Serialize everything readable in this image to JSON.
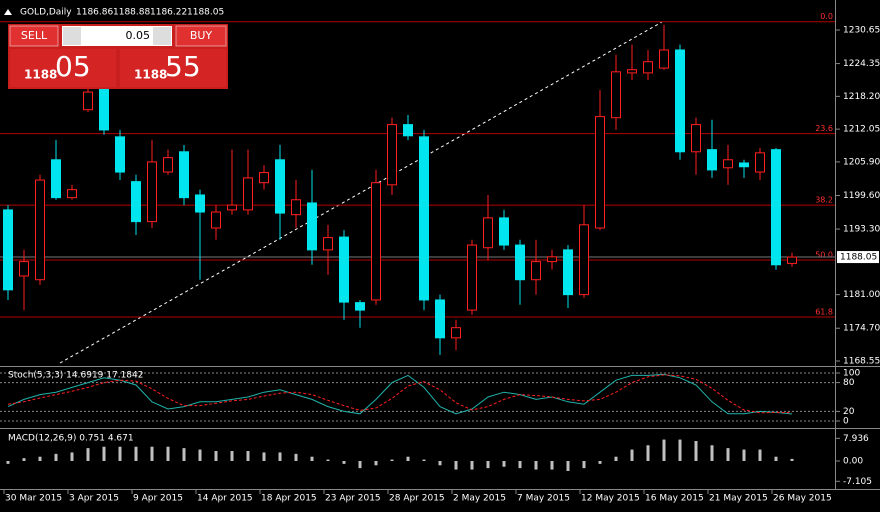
{
  "header": {
    "symbol": "GOLD,Daily",
    "ohlc": [
      1186.86,
      1188.88,
      1186.22,
      1188.05
    ]
  },
  "trade_panel": {
    "sell": "SELL",
    "lot": "0.05",
    "buy": "BUY",
    "bid_big": "1188",
    "bid_small": "05",
    "ask_big": "1188",
    "ask_small": "55"
  },
  "chart_data": [
    {
      "type": "candlestick",
      "categories": [
        "30 Mar 2015",
        null,
        null,
        null,
        "3 Apr 2015",
        null,
        null,
        null,
        "9 Apr 2015",
        null,
        null,
        null,
        "14 Apr 2015",
        null,
        null,
        null,
        "18 Apr 2015",
        null,
        null,
        null,
        "23 Apr 2015",
        null,
        null,
        null,
        "28 Apr 2015",
        null,
        null,
        null,
        "2 May 2015",
        null,
        null,
        null,
        "7 May 2015",
        null,
        null,
        null,
        "12 May 2015",
        null,
        null,
        null,
        "16 May 2015",
        null,
        null,
        null,
        "21 May 2015",
        null,
        null,
        null,
        "26 May 2015",
        null
      ],
      "open": [
        1196.9,
        1184.5,
        1183.8,
        1206.3,
        1199.2,
        1215.7,
        1220.4,
        1210.6,
        1202.2,
        1194.7,
        1204.0,
        1207.8,
        1199.7,
        1193.5,
        1196.9,
        1196.9,
        1202.0,
        1206.3,
        1196.0,
        1198.2,
        1189.4,
        1191.8,
        1179.5,
        1180.0,
        1201.6,
        1212.9,
        1210.6,
        1180.0,
        1172.9,
        1178.1,
        1189.8,
        1195.4,
        1190.3,
        1183.8,
        1187.2,
        1189.4,
        1181.0,
        1193.5,
        1214.2,
        1222.6,
        1222.6,
        1223.5,
        1226.9,
        1207.8,
        1208.2,
        1204.8,
        1205.7,
        1204.0,
        1208.2,
        1186.86
      ],
      "high": [
        1197.8,
        1189.4,
        1203.5,
        1210.0,
        1201.6,
        1220.4,
        1221.3,
        1211.9,
        1203.5,
        1210.0,
        1208.2,
        1209.1,
        1200.7,
        1197.8,
        1208.2,
        1208.2,
        1205.3,
        1209.1,
        1202.5,
        1204.4,
        1194.1,
        1193.1,
        1180.0,
        1204.4,
        1214.2,
        1214.7,
        1211.9,
        1181.0,
        1176.3,
        1191.3,
        1199.7,
        1196.9,
        1191.3,
        1191.3,
        1189.4,
        1190.3,
        1197.8,
        1219.4,
        1226.0,
        1227.9,
        1226.9,
        1231.6,
        1227.9,
        1214.2,
        1213.8,
        1209.1,
        1206.3,
        1208.5,
        1208.5,
        1188.88
      ],
      "low": [
        1180.0,
        1178.1,
        1182.8,
        1198.8,
        1198.8,
        1215.3,
        1211.0,
        1202.5,
        1192.2,
        1193.5,
        1203.5,
        1197.8,
        1183.8,
        1191.3,
        1196.0,
        1196.0,
        1200.7,
        1191.3,
        1193.5,
        1186.6,
        1184.7,
        1176.3,
        1174.8,
        1179.1,
        1199.7,
        1210.0,
        1178.1,
        1169.7,
        1170.6,
        1177.2,
        1187.5,
        1189.4,
        1179.1,
        1181.0,
        1185.7,
        1178.5,
        1180.4,
        1193.1,
        1211.9,
        1221.3,
        1221.3,
        1223.2,
        1206.3,
        1203.5,
        1202.9,
        1201.6,
        1202.9,
        1202.5,
        1185.7,
        1186.22
      ],
      "close": [
        1181.9,
        1187.2,
        1202.5,
        1199.2,
        1200.7,
        1219.0,
        1211.9,
        1204.0,
        1194.7,
        1205.9,
        1206.7,
        1199.2,
        1196.5,
        1196.5,
        1197.8,
        1202.9,
        1203.9,
        1196.3,
        1198.8,
        1189.4,
        1191.7,
        1179.6,
        1178.1,
        1202.0,
        1212.9,
        1210.8,
        1180.0,
        1172.9,
        1174.8,
        1190.3,
        1195.4,
        1190.3,
        1183.8,
        1187.2,
        1188.1,
        1181.0,
        1194.1,
        1214.4,
        1222.8,
        1223.2,
        1224.7,
        1226.9,
        1207.8,
        1212.9,
        1204.4,
        1206.3,
        1205.0,
        1207.6,
        1186.6,
        1188.05
      ],
      "up_color": "#ff2020",
      "down_color": "#00e5ee",
      "ylim": [
        1167.8,
        1232.9
      ],
      "yticks": [
        1230.65,
        1224.35,
        {
          "value": 1218.2,
          "label": "1218.20"
        },
        1212.05,
        {
          "value": 1205.9,
          "label": "1205.90"
        },
        {
          "value": 1199.6,
          "label": "1199.60"
        },
        {
          "value": 1193.3,
          "label": "1193.30"
        },
        {
          "value": 1181.0,
          "label": "1181.00"
        },
        {
          "value": 1174.7,
          "label": "1174.70"
        },
        1168.55
      ],
      "last_price": 1188.05,
      "fibonacci": [
        {
          "label": "0.0",
          "price": 1232.2
        },
        {
          "label": "23.6",
          "price": 1211.2
        },
        {
          "label": "38.2",
          "price": 1197.8
        },
        {
          "label": "50.0",
          "price": 1187.5
        },
        {
          "label": "61.8",
          "price": 1176.8
        }
      ]
    },
    {
      "type": "line",
      "title": "Stoch(5,3,3) 14.6919 17.1842",
      "series": [
        {
          "name": "main",
          "color": "#20b2aa",
          "values": [
            30,
            45,
            55,
            60,
            70,
            80,
            90,
            85,
            75,
            40,
            25,
            30,
            40,
            40,
            45,
            50,
            60,
            65,
            55,
            45,
            30,
            20,
            15,
            45,
            80,
            95,
            70,
            30,
            15,
            25,
            50,
            60,
            55,
            45,
            50,
            40,
            35,
            60,
            85,
            95,
            95,
            97,
            90,
            75,
            40,
            15,
            15,
            20,
            18,
            14.6919
          ]
        },
        {
          "name": "signal",
          "color": "#ff2020",
          "values": [
            35,
            40,
            48,
            55,
            62,
            70,
            80,
            85,
            83,
            67,
            47,
            32,
            32,
            37,
            42,
            45,
            52,
            58,
            60,
            55,
            43,
            32,
            22,
            27,
            47,
            73,
            82,
            65,
            38,
            23,
            30,
            45,
            55,
            53,
            50,
            45,
            42,
            45,
            60,
            80,
            92,
            96,
            94,
            87,
            68,
            43,
            23,
            17,
            18,
            17.1842
          ]
        }
      ],
      "ylim": [
        -10.4,
        110.4
      ],
      "yticks": [
        100,
        80,
        20,
        0
      ]
    },
    {
      "type": "bar",
      "title": "MACD(12,26,9) 0.751 4.671",
      "color": "#c0c0c0",
      "values": [
        -1,
        1,
        1.5,
        2.5,
        3,
        4.5,
        5,
        5,
        5,
        5,
        5,
        4.5,
        4,
        3.5,
        3.5,
        3.5,
        3,
        3,
        2.5,
        1.5,
        0.5,
        -1,
        -2.5,
        -1.5,
        0.5,
        1.5,
        0.5,
        -1.5,
        -3,
        -3,
        -2.5,
        -2,
        -2.5,
        -3,
        -3,
        -3.5,
        -2.5,
        -1,
        1.5,
        4,
        5.5,
        7.5,
        7.5,
        7,
        5.5,
        4.5,
        4,
        4,
        1.5,
        0.751
      ],
      "ylim": [
        -10.15,
        10.85
      ],
      "yticks": [
        7.936,
        {
          "value": 0,
          "label": "0.00"
        },
        -7.105
      ]
    }
  ]
}
